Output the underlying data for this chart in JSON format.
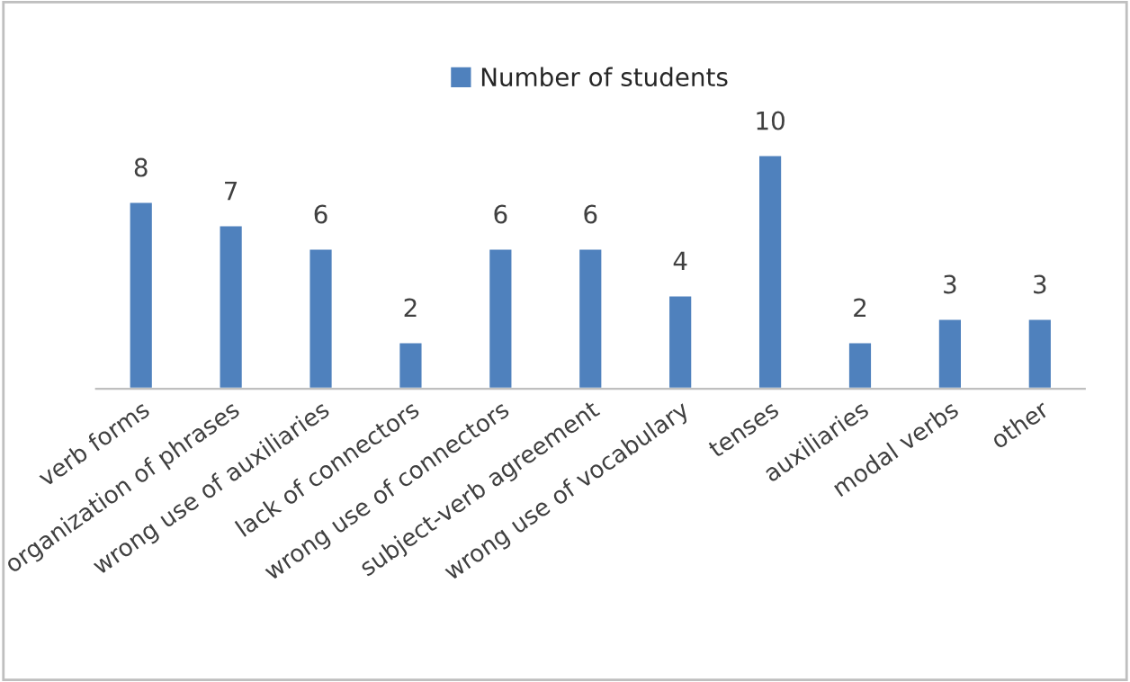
{
  "chart_data": {
    "type": "bar",
    "categories": [
      "verb forms",
      "organization of phrases",
      "wrong use of auxiliaries",
      "lack of connectors",
      "wrong use of connectors",
      "subject-verb agreement",
      "wrong use of vocabulary",
      "tenses",
      "auxiliaries",
      "modal verbs",
      "other"
    ],
    "series": [
      {
        "name": "Number of students",
        "color": "#4f81bd",
        "values": [
          8,
          7,
          6,
          2,
          6,
          6,
          4,
          10,
          2,
          3,
          3
        ]
      }
    ],
    "data_labels": true,
    "legend": "top",
    "grid": false
  }
}
